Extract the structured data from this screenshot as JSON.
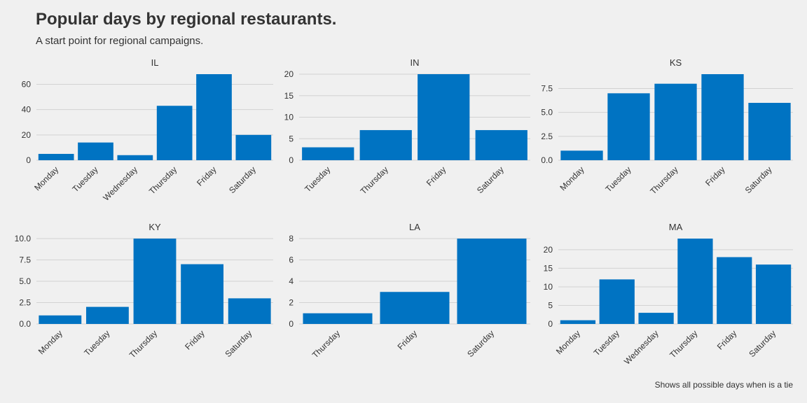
{
  "title": "Popular days by regional restaurants.",
  "subtitle": "A start point for regional campaigns.",
  "caption": "Shows all possible days when is a tie",
  "colors": {
    "bar": "#0073c2",
    "grid": "#d2d2d2",
    "background": "#f0f0f0",
    "text": "#333333"
  },
  "chart_data": [
    {
      "type": "bar",
      "title": "IL",
      "categories": [
        "Monday",
        "Tuesday",
        "Wednesday",
        "Thursday",
        "Friday",
        "Saturday"
      ],
      "values": [
        5,
        14,
        4,
        43,
        68,
        20
      ],
      "yticks": [
        0,
        20,
        40,
        60
      ],
      "ytick_labels": [
        "0",
        "20",
        "40",
        "60"
      ],
      "ylim": [
        0,
        68
      ]
    },
    {
      "type": "bar",
      "title": "IN",
      "categories": [
        "Tuesday",
        "Thursday",
        "Friday",
        "Saturday"
      ],
      "values": [
        3,
        7,
        20,
        7
      ],
      "yticks": [
        0,
        5,
        10,
        15,
        20
      ],
      "ytick_labels": [
        "0",
        "5",
        "10",
        "15",
        "20"
      ],
      "ylim": [
        0,
        20
      ]
    },
    {
      "type": "bar",
      "title": "KS",
      "categories": [
        "Monday",
        "Tuesday",
        "Thursday",
        "Friday",
        "Saturday"
      ],
      "values": [
        1,
        7,
        8,
        9,
        6
      ],
      "yticks": [
        0,
        2.5,
        5,
        7.5
      ],
      "ytick_labels": [
        "0.0",
        "2.5",
        "5.0",
        "7.5"
      ],
      "ylim": [
        0,
        9
      ]
    },
    {
      "type": "bar",
      "title": "KY",
      "categories": [
        "Monday",
        "Tuesday",
        "Thursday",
        "Friday",
        "Saturday"
      ],
      "values": [
        1,
        2,
        10,
        7,
        3
      ],
      "yticks": [
        0,
        2.5,
        5,
        7.5,
        10
      ],
      "ytick_labels": [
        "0.0",
        "2.5",
        "5.0",
        "7.5",
        "10.0"
      ],
      "ylim": [
        0,
        10
      ]
    },
    {
      "type": "bar",
      "title": "LA",
      "categories": [
        "Thursday",
        "Friday",
        "Saturday"
      ],
      "values": [
        1,
        3,
        8
      ],
      "yticks": [
        0,
        2,
        4,
        6,
        8
      ],
      "ytick_labels": [
        "0",
        "2",
        "4",
        "6",
        "8"
      ],
      "ylim": [
        0,
        8
      ]
    },
    {
      "type": "bar",
      "title": "MA",
      "categories": [
        "Monday",
        "Tuesday",
        "Wednesday",
        "Thursday",
        "Friday",
        "Saturday"
      ],
      "values": [
        1,
        12,
        3,
        23,
        18,
        16
      ],
      "yticks": [
        0,
        5,
        10,
        15,
        20
      ],
      "ytick_labels": [
        "0",
        "5",
        "10",
        "15",
        "20"
      ],
      "ylim": [
        0,
        23
      ]
    }
  ]
}
